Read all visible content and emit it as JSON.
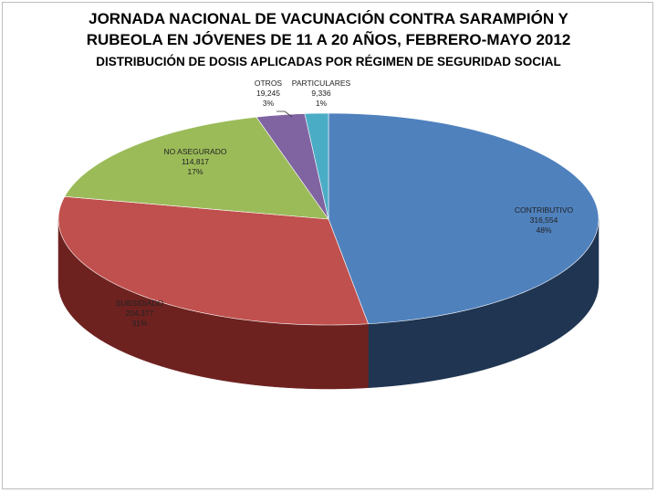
{
  "chart_data": {
    "type": "pie",
    "title": "JORNADA NACIONAL DE VACUNACIÓN CONTRA SARAMPIÓN Y",
    "title_line2": "RUBEOLA EN JÓVENES DE 11 A 20 AÑOS, FEBRERO-MAYO 2012",
    "subtitle": "DISTRIBUCIÓN DE DOSIS APLICADAS POR RÉGIMEN DE SEGURIDAD SOCIAL",
    "three_d": true,
    "slices": [
      {
        "label": "CONTRIBUTIVO",
        "value_text": "316,554",
        "value": 316554,
        "percent": "48%",
        "color": "#4F81BD",
        "side_color": "#1F3552"
      },
      {
        "label": "SUBSIDIADO",
        "value_text": "204,377",
        "value": 204377,
        "percent": "31%",
        "color": "#C0504D",
        "side_color": "#6E2220"
      },
      {
        "label": "NO ASEGURADO",
        "value_text": "114,817",
        "value": 114817,
        "percent": "17%",
        "color": "#9BBB59",
        "side_color": "#5A7030"
      },
      {
        "label": "OTROS",
        "value_text": "19,245",
        "value": 19245,
        "percent": "3%",
        "color": "#8064A2",
        "side_color": "#4A3660"
      },
      {
        "label": "PARTICULARES",
        "value_text": "9,336",
        "value": 9336,
        "percent": "1%",
        "color": "#4BACC6",
        "side_color": "#24687A"
      }
    ]
  }
}
